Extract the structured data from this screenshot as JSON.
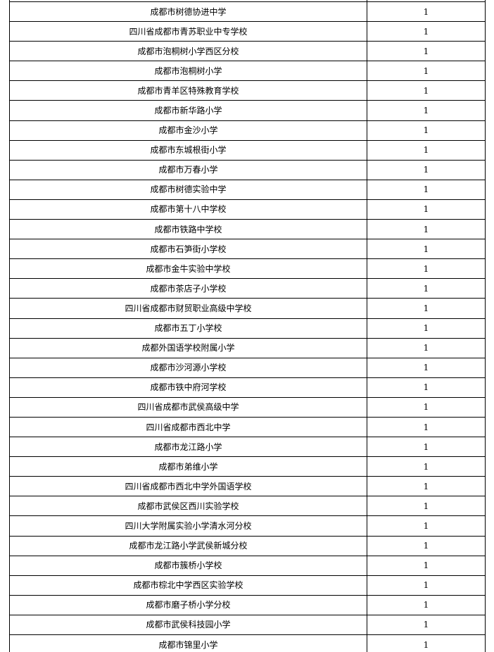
{
  "table": {
    "border_color": "#000000",
    "background_color": "#ffffff",
    "text_color": "#000000",
    "rows": [
      {
        "school": "成都市树德协进中学",
        "value": "1"
      },
      {
        "school": "四川省成都市青苏职业中专学校",
        "value": "1"
      },
      {
        "school": "成都市泡桐树小学西区分校",
        "value": "1"
      },
      {
        "school": "成都市泡桐树小学",
        "value": "1"
      },
      {
        "school": "成都市青羊区特殊教育学校",
        "value": "1"
      },
      {
        "school": "成都市新华路小学",
        "value": "1"
      },
      {
        "school": "成都市金沙小学",
        "value": "1"
      },
      {
        "school": "成都市东城根街小学",
        "value": "1"
      },
      {
        "school": "成都市万春小学",
        "value": "1"
      },
      {
        "school": "成都市树德实验中学",
        "value": "1"
      },
      {
        "school": "成都市第十八中学校",
        "value": "1"
      },
      {
        "school": "成都市铁路中学校",
        "value": "1"
      },
      {
        "school": "成都市石笋街小学校",
        "value": "1"
      },
      {
        "school": "成都市金牛实验中学校",
        "value": "1"
      },
      {
        "school": "成都市茶店子小学校",
        "value": "1"
      },
      {
        "school": "四川省成都市财贸职业高级中学校",
        "value": "1"
      },
      {
        "school": "成都市五丁小学校",
        "value": "1"
      },
      {
        "school": "成都外国语学校附属小学",
        "value": "1"
      },
      {
        "school": "成都市沙河源小学校",
        "value": "1"
      },
      {
        "school": "成都市铁中府河学校",
        "value": "1"
      },
      {
        "school": "四川省成都市武侯高级中学",
        "value": "1"
      },
      {
        "school": "四川省成都市西北中学",
        "value": "1"
      },
      {
        "school": "成都市龙江路小学",
        "value": "1"
      },
      {
        "school": "成都市弟维小学",
        "value": "1"
      },
      {
        "school": "四川省成都市西北中学外国语学校",
        "value": "1"
      },
      {
        "school": "成都市武侯区西川实验学校",
        "value": "1"
      },
      {
        "school": "四川大学附属实验小学清水河分校",
        "value": "1"
      },
      {
        "school": "成都市龙江路小学武侯新城分校",
        "value": "1"
      },
      {
        "school": "成都市簇桥小学校",
        "value": "1"
      },
      {
        "school": "成都市棕北中学西区实验学校",
        "value": "1"
      },
      {
        "school": "成都市磨子桥小学分校",
        "value": "1"
      },
      {
        "school": "成都市武侯科技园小学",
        "value": "1"
      },
      {
        "school": "成都市锦里小学",
        "value": "1"
      }
    ]
  }
}
